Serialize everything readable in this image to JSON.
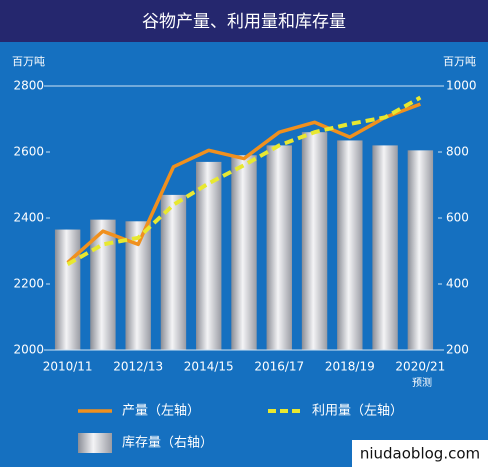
{
  "chart_data": {
    "type": "bar-line",
    "title": "谷物产量、利用量和库存量",
    "y_label": "百万吨",
    "y2_label": "百万吨",
    "categories": [
      "2010/11",
      null,
      "2012/13",
      null,
      "2014/15",
      null,
      "2016/17",
      null,
      "2018/19",
      null,
      "2020/21"
    ],
    "annotation": "预测",
    "watermark": "niudaoblog.com",
    "ylim": [
      2000,
      2800
    ],
    "yticks": [
      2000,
      2200,
      2400,
      2600,
      2800
    ],
    "y2lim": [
      200,
      1000
    ],
    "y2ticks": [
      200,
      400,
      600,
      800,
      1000
    ],
    "series": [
      {
        "name": "产量（左轴）",
        "type": "line",
        "color": "#f0901e",
        "dashed": false,
        "values": [
          2265,
          2360,
          2320,
          2555,
          2605,
          2580,
          2660,
          2690,
          2645,
          2705,
          2745
        ]
      },
      {
        "name": "利用量（左轴）",
        "type": "line",
        "color": "#e8e830",
        "dashed": true,
        "values": [
          2260,
          2320,
          2340,
          2440,
          2505,
          2560,
          2620,
          2660,
          2685,
          2705,
          2765
        ]
      },
      {
        "name": "库存量（右轴）",
        "type": "bar",
        "axis": "y2",
        "color": "#c8c8cc",
        "values": [
          565,
          595,
          590,
          670,
          770,
          790,
          820,
          860,
          835,
          820,
          805
        ]
      }
    ]
  }
}
